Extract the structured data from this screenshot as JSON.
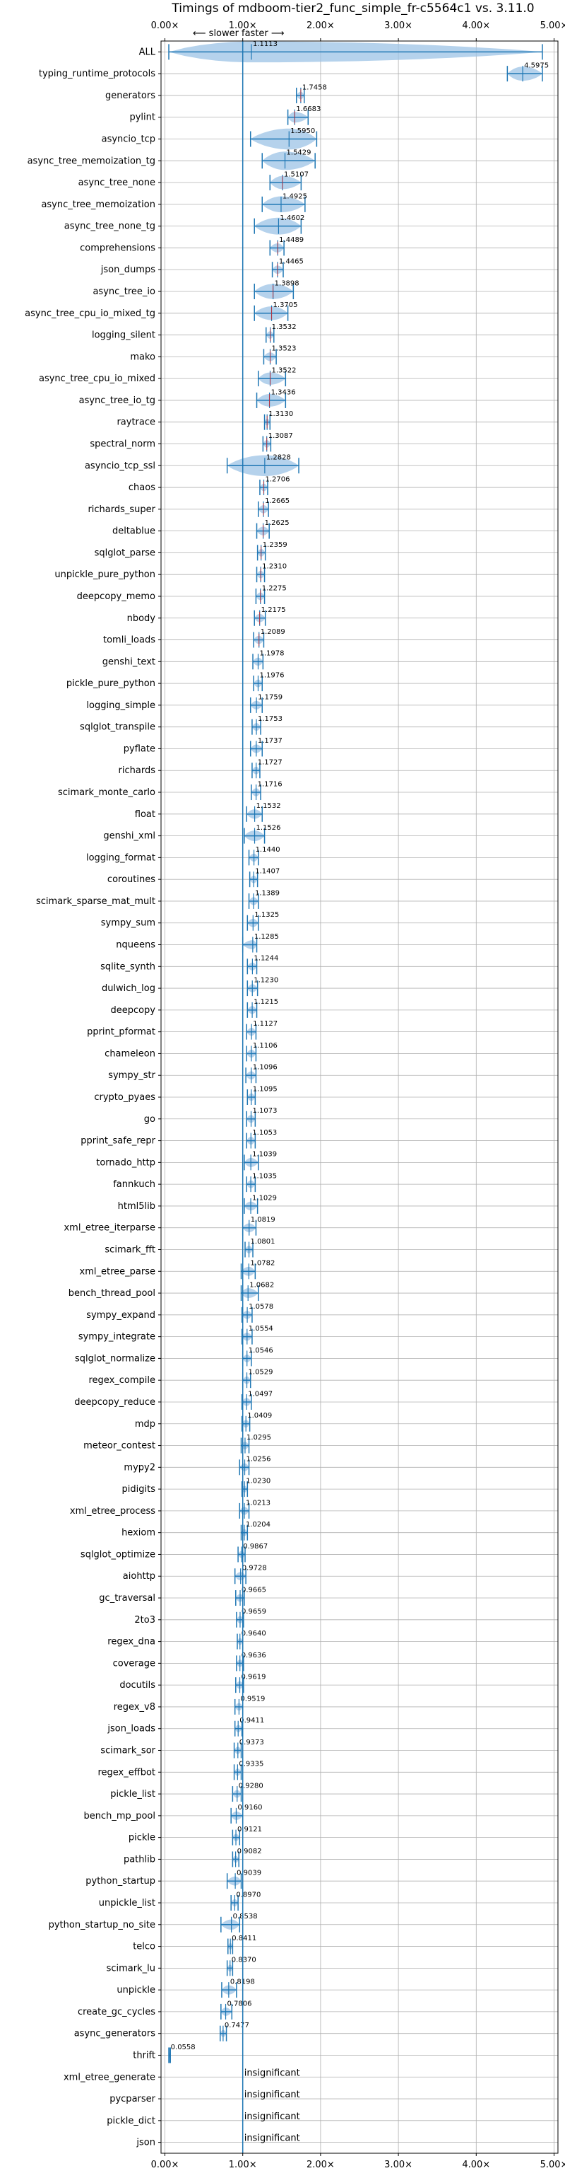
{
  "chart_data": {
    "type": "violin",
    "title": "Timings of mdboom-tier2_func_simple_fr-c5564c1 vs. 3.11.0",
    "direction_labels": {
      "slower": "⟵ slower",
      "faster": "faster ⟶"
    },
    "xlim": [
      -0.05,
      5.05
    ],
    "xticks": [
      0,
      1,
      2,
      3,
      4,
      5
    ],
    "xtick_labels": [
      "0.00×",
      "1.00×",
      "2.00×",
      "3.00×",
      "4.00×",
      "5.00×"
    ],
    "reference_line": 1.0,
    "grid": true,
    "colors": {
      "violin": "#9cc3e6",
      "line": "#1f77b4",
      "ref": "#1f77b4"
    },
    "benchmarks": [
      {
        "name": "ALL",
        "value": 1.1113,
        "label": "1.1113",
        "min": 0.05,
        "max": 4.85
      },
      {
        "name": "typing_runtime_protocols",
        "value": 4.5975,
        "label": "4.5975",
        "min": 4.4,
        "max": 4.85
      },
      {
        "name": "generators",
        "value": 1.7458,
        "label": "1.7458",
        "min": 1.69,
        "max": 1.79
      },
      {
        "name": "pylint",
        "value": 1.6683,
        "label": "1.6683",
        "min": 1.58,
        "max": 1.84
      },
      {
        "name": "asyncio_tcp",
        "value": 1.595,
        "label": "1.5950",
        "min": 1.1,
        "max": 1.95
      },
      {
        "name": "async_tree_memoization_tg",
        "value": 1.5429,
        "label": "1.5429",
        "min": 1.25,
        "max": 1.93
      },
      {
        "name": "async_tree_none",
        "value": 1.5107,
        "label": "1.5107",
        "min": 1.35,
        "max": 1.75
      },
      {
        "name": "async_tree_memoization",
        "value": 1.4925,
        "label": "1.4925",
        "min": 1.25,
        "max": 1.8
      },
      {
        "name": "async_tree_none_tg",
        "value": 1.4602,
        "label": "1.4602",
        "min": 1.15,
        "max": 1.75
      },
      {
        "name": "comprehensions",
        "value": 1.4489,
        "label": "1.4489",
        "min": 1.35,
        "max": 1.53
      },
      {
        "name": "json_dumps",
        "value": 1.4465,
        "label": "1.4465",
        "min": 1.38,
        "max": 1.52
      },
      {
        "name": "async_tree_io",
        "value": 1.3898,
        "label": "1.3898",
        "min": 1.15,
        "max": 1.65
      },
      {
        "name": "async_tree_cpu_io_mixed_tg",
        "value": 1.3705,
        "label": "1.3705",
        "min": 1.15,
        "max": 1.58
      },
      {
        "name": "logging_silent",
        "value": 1.3532,
        "label": "1.3532",
        "min": 1.3,
        "max": 1.4
      },
      {
        "name": "mako",
        "value": 1.3523,
        "label": "1.3523",
        "min": 1.27,
        "max": 1.43
      },
      {
        "name": "async_tree_cpu_io_mixed",
        "value": 1.3522,
        "label": "1.3522",
        "min": 1.2,
        "max": 1.55
      },
      {
        "name": "async_tree_io_tg",
        "value": 1.3436,
        "label": "1.3436",
        "min": 1.18,
        "max": 1.55
      },
      {
        "name": "raytrace",
        "value": 1.313,
        "label": "1.3130",
        "min": 1.28,
        "max": 1.35
      },
      {
        "name": "spectral_norm",
        "value": 1.3087,
        "label": "1.3087",
        "min": 1.26,
        "max": 1.36
      },
      {
        "name": "asyncio_tcp_ssl",
        "value": 1.2828,
        "label": "1.2828",
        "min": 0.8,
        "max": 1.72
      },
      {
        "name": "chaos",
        "value": 1.2706,
        "label": "1.2706",
        "min": 1.22,
        "max": 1.32
      },
      {
        "name": "richards_super",
        "value": 1.2665,
        "label": "1.2665",
        "min": 1.2,
        "max": 1.33
      },
      {
        "name": "deltablue",
        "value": 1.2625,
        "label": "1.2625",
        "min": 1.18,
        "max": 1.34
      },
      {
        "name": "sqlglot_parse",
        "value": 1.2359,
        "label": "1.2359",
        "min": 1.19,
        "max": 1.29
      },
      {
        "name": "unpickle_pure_python",
        "value": 1.231,
        "label": "1.2310",
        "min": 1.18,
        "max": 1.28
      },
      {
        "name": "deepcopy_memo",
        "value": 1.2275,
        "label": "1.2275",
        "min": 1.17,
        "max": 1.28
      },
      {
        "name": "nbody",
        "value": 1.2175,
        "label": "1.2175",
        "min": 1.15,
        "max": 1.29
      },
      {
        "name": "tomli_loads",
        "value": 1.2089,
        "label": "1.2089",
        "min": 1.14,
        "max": 1.27
      },
      {
        "name": "genshi_text",
        "value": 1.1978,
        "label": "1.1978",
        "min": 1.13,
        "max": 1.26
      },
      {
        "name": "pickle_pure_python",
        "value": 1.1976,
        "label": "1.1976",
        "min": 1.14,
        "max": 1.25
      },
      {
        "name": "logging_simple",
        "value": 1.1759,
        "label": "1.1759",
        "min": 1.1,
        "max": 1.25
      },
      {
        "name": "sqlglot_transpile",
        "value": 1.1753,
        "label": "1.1753",
        "min": 1.12,
        "max": 1.23
      },
      {
        "name": "pyflate",
        "value": 1.1737,
        "label": "1.1737",
        "min": 1.1,
        "max": 1.25
      },
      {
        "name": "richards",
        "value": 1.1727,
        "label": "1.1727",
        "min": 1.12,
        "max": 1.22
      },
      {
        "name": "scimark_monte_carlo",
        "value": 1.1716,
        "label": "1.1716",
        "min": 1.11,
        "max": 1.23
      },
      {
        "name": "float",
        "value": 1.1532,
        "label": "1.1532",
        "min": 1.05,
        "max": 1.25
      },
      {
        "name": "genshi_xml",
        "value": 1.1526,
        "label": "1.1526",
        "min": 1.02,
        "max": 1.28
      },
      {
        "name": "logging_format",
        "value": 1.144,
        "label": "1.1440",
        "min": 1.08,
        "max": 1.2
      },
      {
        "name": "coroutines",
        "value": 1.1407,
        "label": "1.1407",
        "min": 1.09,
        "max": 1.19
      },
      {
        "name": "scimark_sparse_mat_mult",
        "value": 1.1389,
        "label": "1.1389",
        "min": 1.08,
        "max": 1.2
      },
      {
        "name": "sympy_sum",
        "value": 1.1325,
        "label": "1.1325",
        "min": 1.06,
        "max": 1.2
      },
      {
        "name": "nqueens",
        "value": 1.1285,
        "label": "1.1285",
        "min": 1.0,
        "max": 1.18
      },
      {
        "name": "sqlite_synth",
        "value": 1.1244,
        "label": "1.1244",
        "min": 1.06,
        "max": 1.18
      },
      {
        "name": "dulwich_log",
        "value": 1.123,
        "label": "1.1230",
        "min": 1.06,
        "max": 1.19
      },
      {
        "name": "deepcopy",
        "value": 1.1215,
        "label": "1.1215",
        "min": 1.06,
        "max": 1.18
      },
      {
        "name": "pprint_pformat",
        "value": 1.1127,
        "label": "1.1127",
        "min": 1.05,
        "max": 1.17
      },
      {
        "name": "chameleon",
        "value": 1.1106,
        "label": "1.1106",
        "min": 1.05,
        "max": 1.17
      },
      {
        "name": "sympy_str",
        "value": 1.1096,
        "label": "1.1096",
        "min": 1.04,
        "max": 1.17
      },
      {
        "name": "crypto_pyaes",
        "value": 1.1095,
        "label": "1.1095",
        "min": 1.06,
        "max": 1.16
      },
      {
        "name": "go",
        "value": 1.1073,
        "label": "1.1073",
        "min": 1.05,
        "max": 1.16
      },
      {
        "name": "pprint_safe_repr",
        "value": 1.1053,
        "label": "1.1053",
        "min": 1.05,
        "max": 1.16
      },
      {
        "name": "tornado_http",
        "value": 1.1039,
        "label": "1.1039",
        "min": 1.02,
        "max": 1.2
      },
      {
        "name": "fannkuch",
        "value": 1.1035,
        "label": "1.1035",
        "min": 1.05,
        "max": 1.16
      },
      {
        "name": "html5lib",
        "value": 1.1029,
        "label": "1.1029",
        "min": 1.02,
        "max": 1.19
      },
      {
        "name": "xml_etree_iterparse",
        "value": 1.0819,
        "label": "1.0819",
        "min": 1.0,
        "max": 1.17
      },
      {
        "name": "scimark_fft",
        "value": 1.0801,
        "label": "1.0801",
        "min": 1.03,
        "max": 1.13
      },
      {
        "name": "xml_etree_parse",
        "value": 1.0782,
        "label": "1.0782",
        "min": 0.98,
        "max": 1.16
      },
      {
        "name": "bench_thread_pool",
        "value": 1.0682,
        "label": "1.0682",
        "min": 0.98,
        "max": 1.2
      },
      {
        "name": "sympy_expand",
        "value": 1.0578,
        "label": "1.0578",
        "min": 0.99,
        "max": 1.12
      },
      {
        "name": "sympy_integrate",
        "value": 1.0554,
        "label": "1.0554",
        "min": 0.99,
        "max": 1.12
      },
      {
        "name": "sqlglot_normalize",
        "value": 1.0546,
        "label": "1.0546",
        "min": 1.0,
        "max": 1.11
      },
      {
        "name": "regex_compile",
        "value": 1.0529,
        "label": "1.0529",
        "min": 1.0,
        "max": 1.1
      },
      {
        "name": "deepcopy_reduce",
        "value": 1.0497,
        "label": "1.0497",
        "min": 0.99,
        "max": 1.11
      },
      {
        "name": "mdp",
        "value": 1.0409,
        "label": "1.0409",
        "min": 0.99,
        "max": 1.09
      },
      {
        "name": "meteor_contest",
        "value": 1.0295,
        "label": "1.0295",
        "min": 0.98,
        "max": 1.08
      },
      {
        "name": "mypy2",
        "value": 1.0256,
        "label": "1.0256",
        "min": 0.96,
        "max": 1.08
      },
      {
        "name": "pidigits",
        "value": 1.023,
        "label": "1.0230",
        "min": 0.99,
        "max": 1.06
      },
      {
        "name": "xml_etree_process",
        "value": 1.0213,
        "label": "1.0213",
        "min": 0.96,
        "max": 1.08
      },
      {
        "name": "hexiom",
        "value": 1.0204,
        "label": "1.0204",
        "min": 0.98,
        "max": 1.06
      },
      {
        "name": "sqlglot_optimize",
        "value": 0.9867,
        "label": "0.9867",
        "min": 0.94,
        "max": 1.03
      },
      {
        "name": "aiohttp",
        "value": 0.9728,
        "label": "0.9728",
        "min": 0.9,
        "max": 1.04
      },
      {
        "name": "gc_traversal",
        "value": 0.9665,
        "label": "0.9665",
        "min": 0.91,
        "max": 1.02
      },
      {
        "name": "2to3",
        "value": 0.9659,
        "label": "0.9659",
        "min": 0.92,
        "max": 1.01
      },
      {
        "name": "regex_dna",
        "value": 0.964,
        "label": "0.9640",
        "min": 0.93,
        "max": 1.0
      },
      {
        "name": "coverage",
        "value": 0.9636,
        "label": "0.9636",
        "min": 0.92,
        "max": 1.01
      },
      {
        "name": "docutils",
        "value": 0.9619,
        "label": "0.9619",
        "min": 0.91,
        "max": 1.01
      },
      {
        "name": "regex_v8",
        "value": 0.9519,
        "label": "0.9519",
        "min": 0.9,
        "max": 1.0
      },
      {
        "name": "json_loads",
        "value": 0.9411,
        "label": "0.9411",
        "min": 0.9,
        "max": 0.99
      },
      {
        "name": "scimark_sor",
        "value": 0.9373,
        "label": "0.9373",
        "min": 0.89,
        "max": 0.98
      },
      {
        "name": "regex_effbot",
        "value": 0.9335,
        "label": "0.9335",
        "min": 0.89,
        "max": 0.98
      },
      {
        "name": "pickle_list",
        "value": 0.928,
        "label": "0.9280",
        "min": 0.87,
        "max": 0.98
      },
      {
        "name": "bench_mp_pool",
        "value": 0.916,
        "label": "0.9160",
        "min": 0.85,
        "max": 1.0
      },
      {
        "name": "pickle",
        "value": 0.9121,
        "label": "0.9121",
        "min": 0.87,
        "max": 0.96
      },
      {
        "name": "pathlib",
        "value": 0.9082,
        "label": "0.9082",
        "min": 0.87,
        "max": 0.95
      },
      {
        "name": "python_startup",
        "value": 0.9039,
        "label": "0.9039",
        "min": 0.8,
        "max": 0.98
      },
      {
        "name": "unpickle_list",
        "value": 0.897,
        "label": "0.8970",
        "min": 0.85,
        "max": 0.94
      },
      {
        "name": "python_startup_no_site",
        "value": 0.8538,
        "label": "0.8538",
        "min": 0.72,
        "max": 0.96
      },
      {
        "name": "telco",
        "value": 0.8411,
        "label": "0.8411",
        "min": 0.81,
        "max": 0.87
      },
      {
        "name": "scimark_lu",
        "value": 0.837,
        "label": "0.8370",
        "min": 0.8,
        "max": 0.87
      },
      {
        "name": "unpickle",
        "value": 0.8198,
        "label": "0.8198",
        "min": 0.73,
        "max": 0.92
      },
      {
        "name": "create_gc_cycles",
        "value": 0.7806,
        "label": "0.7806",
        "min": 0.72,
        "max": 0.86
      },
      {
        "name": "async_generators",
        "value": 0.7477,
        "label": "0.7477",
        "min": 0.71,
        "max": 0.79
      },
      {
        "name": "thrift",
        "value": 0.0558,
        "label": "0.0558",
        "min": 0.05,
        "max": 0.07
      },
      {
        "name": "xml_etree_generate",
        "value": null,
        "label": "insignificant"
      },
      {
        "name": "pycparser",
        "value": null,
        "label": "insignificant"
      },
      {
        "name": "pickle_dict",
        "value": null,
        "label": "insignificant"
      },
      {
        "name": "json",
        "value": null,
        "label": "insignificant"
      }
    ]
  }
}
